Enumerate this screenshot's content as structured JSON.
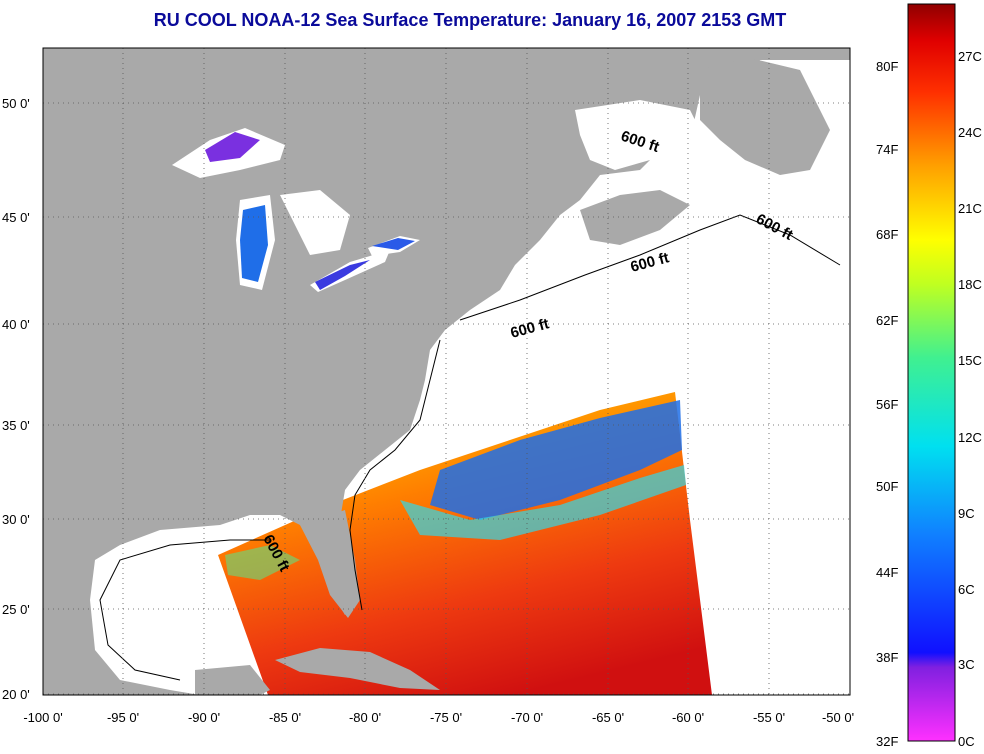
{
  "title": "RU COOL  NOAA-12  Sea Surface Temperature:  January 16, 2007 2153 GMT",
  "lat_ticks": [
    "20 0'",
    "25 0'",
    "30 0'",
    "35 0'",
    "40 0'",
    "45 0'",
    "50 0'"
  ],
  "lon_ticks": [
    "-100 0'",
    "-95 0'",
    "-90 0'",
    "-85 0'",
    "-80 0'",
    "-75 0'",
    "-70 0'",
    "-65 0'",
    "-60 0'",
    "-55 0'",
    "-50 0'"
  ],
  "contour_label": "600 ft",
  "colorbar": {
    "fahrenheit": [
      "32F",
      "38F",
      "44F",
      "50F",
      "56F",
      "62F",
      "68F",
      "74F",
      "80F"
    ],
    "celsius": [
      "0C",
      "3C",
      "6C",
      "9C",
      "12C",
      "15C",
      "18C",
      "21C",
      "24C",
      "27C"
    ]
  },
  "colors": {
    "land": "#a9a9a9",
    "title": "#0a0a9a",
    "warm": "#e8281e",
    "cool": "#1a5ae8",
    "missing": "#ffffff"
  }
}
